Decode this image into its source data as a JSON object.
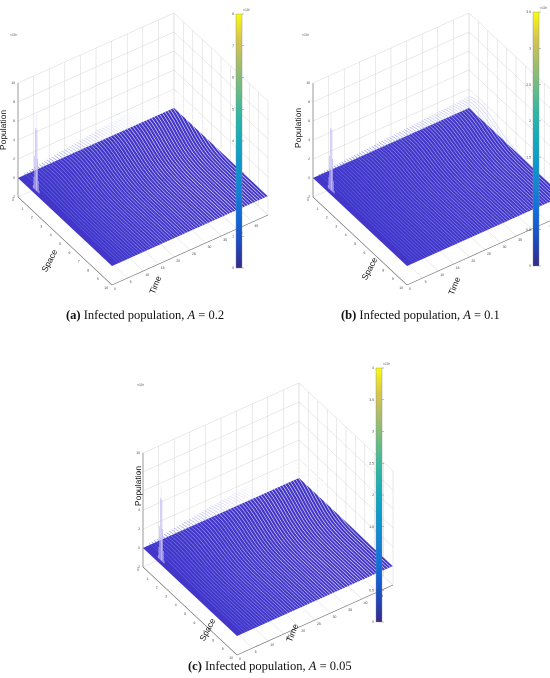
{
  "panels": [
    {
      "label": "(a)",
      "caption_text": "Infected population, ",
      "param_symbol": "A",
      "param_value": "= 0.2",
      "axis_labels": {
        "z": "Population",
        "x": "Space",
        "y": "Time"
      },
      "colorbar_exponent": "×10³",
      "space_ticks": [
        "0",
        "1",
        "2",
        "3",
        "4",
        "5",
        "6",
        "7",
        "8",
        "9",
        "10"
      ],
      "time_ticks": [
        "0",
        "5",
        "10",
        "15",
        "20",
        "25",
        "30",
        "35",
        "40",
        "45"
      ],
      "pop_ticks": [
        "-2",
        "0",
        "2",
        "4",
        "6",
        "8",
        "10"
      ],
      "colorbar_ticks": [
        "0",
        "1",
        "2",
        "3",
        "4",
        "5",
        "6",
        "7",
        "8"
      ]
    },
    {
      "label": "(b)",
      "caption_text": "Infected population, ",
      "param_symbol": "A",
      "param_value": "= 0.1",
      "axis_labels": {
        "z": "Population",
        "x": "Space",
        "y": "Time"
      },
      "colorbar_exponent": "×10³",
      "space_ticks": [
        "0",
        "1",
        "2",
        "3",
        "4",
        "5",
        "6",
        "7",
        "8",
        "9",
        "10"
      ],
      "time_ticks": [
        "0",
        "5",
        "10",
        "15",
        "20",
        "25",
        "30",
        "35",
        "40",
        "45",
        "50"
      ],
      "pop_ticks": [
        "-2",
        "0",
        "2",
        "4",
        "6",
        "8",
        "10"
      ],
      "colorbar_ticks": [
        "0",
        "0.5",
        "1",
        "1.5",
        "2",
        "2.5",
        "3",
        "3.5"
      ]
    },
    {
      "label": "(c)",
      "caption_text": "Infected population, ",
      "param_symbol": "A",
      "param_value": "= 0.05",
      "axis_labels": {
        "z": "Population",
        "x": "Space",
        "y": "Time"
      },
      "colorbar_exponent": "×10³",
      "space_ticks": [
        "0",
        "1",
        "2",
        "3",
        "4",
        "5",
        "6",
        "7",
        "8",
        "9",
        "10"
      ],
      "time_ticks": [
        "0",
        "5",
        "10",
        "15",
        "20",
        "25",
        "30",
        "35",
        "40",
        "45"
      ],
      "pop_ticks": [
        "-2",
        "0",
        "2",
        "4",
        "6",
        "8",
        "10"
      ],
      "colorbar_ticks": [
        "0",
        "0.5",
        "1",
        "1.5",
        "2",
        "2.5",
        "3",
        "3.5",
        "4"
      ]
    }
  ],
  "chart_data": [
    {
      "type": "surface",
      "panel": "a",
      "parameter": {
        "A": 0.2
      },
      "xlabel": "Space",
      "ylabel": "Time",
      "zlabel": "Population",
      "xlim": [
        0,
        10
      ],
      "ylim": [
        0,
        50
      ],
      "zlim": [
        -2,
        10
      ],
      "z_scale": 1000,
      "colormap": "parula",
      "features": {
        "initial_spike_height": 8,
        "trough_value": 0,
        "late_ridge_max": 2.8
      }
    },
    {
      "type": "surface",
      "panel": "b",
      "parameter": {
        "A": 0.1
      },
      "xlabel": "Space",
      "ylabel": "Time",
      "zlabel": "Population",
      "xlim": [
        0,
        10
      ],
      "ylim": [
        0,
        50
      ],
      "zlim": [
        -2,
        10
      ],
      "z_scale": 1000,
      "colormap": "parula",
      "features": {
        "initial_spike_height": 8,
        "trough_value": 0,
        "late_ridge_max": 1.6
      }
    },
    {
      "type": "surface",
      "panel": "c",
      "parameter": {
        "A": 0.05
      },
      "xlabel": "Space",
      "ylabel": "Time",
      "zlabel": "Population",
      "xlim": [
        0,
        10
      ],
      "ylim": [
        0,
        50
      ],
      "zlim": [
        -2,
        10
      ],
      "z_scale": 1000,
      "colormap": "parula",
      "features": {
        "initial_spike_height": 8,
        "trough_value": 0,
        "late_ridge_max": 2.9
      }
    }
  ]
}
